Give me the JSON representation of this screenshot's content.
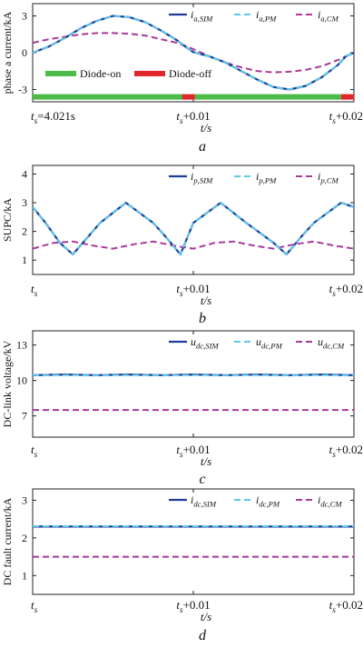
{
  "colors": {
    "sim": "#1f3c99",
    "pm": "#5ec8e6",
    "cm": "#a83a9a",
    "diode_on": "#4cbb47",
    "diode_off": "#e0262b",
    "axis": "#222222"
  },
  "chart_data": [
    {
      "id": "a",
      "type": "line",
      "panel_label": "a",
      "ylabel": "phase a current/kA",
      "xlabel": "t/s",
      "xlim": [
        0,
        0.02
      ],
      "ylim": [
        -4,
        4
      ],
      "yticks": [
        -3,
        0,
        3
      ],
      "xticks": [
        {
          "x": 0,
          "base": "t",
          "sub": "s",
          "suffix": "=4.021s"
        },
        {
          "x": 0.01,
          "base": "t",
          "sub": "s",
          "suffix": "+0.01"
        },
        {
          "x": 0.02,
          "base": "t",
          "sub": "s",
          "suffix": "+0.02"
        }
      ],
      "legend": [
        {
          "base": "i",
          "sub": "a,SIM",
          "style": "sim"
        },
        {
          "base": "i",
          "sub": "a,PM",
          "style": "pm"
        },
        {
          "base": "i",
          "sub": "a,CM",
          "style": "cm"
        }
      ],
      "series": [
        {
          "style": "sim",
          "x": [
            0,
            0.001,
            0.002,
            0.003,
            0.004,
            0.005,
            0.006,
            0.007,
            0.008,
            0.009,
            0.0095,
            0.01,
            0.011,
            0.012,
            0.013,
            0.014,
            0.015,
            0.016,
            0.017,
            0.018,
            0.019,
            0.0195,
            0.02
          ],
          "y": [
            0,
            0.5,
            1.2,
            2.0,
            2.6,
            3.0,
            2.9,
            2.5,
            1.8,
            1.0,
            0.5,
            0.05,
            -0.3,
            -0.8,
            -1.5,
            -2.2,
            -2.8,
            -3.0,
            -2.7,
            -2.0,
            -1.0,
            -0.3,
            0
          ]
        },
        {
          "style": "pm",
          "x": [
            0,
            0.001,
            0.002,
            0.003,
            0.004,
            0.005,
            0.006,
            0.007,
            0.008,
            0.009,
            0.0095,
            0.01,
            0.011,
            0.012,
            0.013,
            0.014,
            0.015,
            0.016,
            0.017,
            0.018,
            0.019,
            0.0195,
            0.02
          ],
          "y": [
            0,
            0.5,
            1.2,
            2.0,
            2.6,
            3.0,
            2.9,
            2.5,
            1.8,
            1.0,
            0.5,
            0.05,
            -0.3,
            -0.8,
            -1.5,
            -2.2,
            -2.8,
            -3.0,
            -2.7,
            -2.0,
            -1.0,
            -0.3,
            0
          ]
        },
        {
          "style": "cm",
          "x": [
            0,
            0.001,
            0.002,
            0.003,
            0.004,
            0.005,
            0.006,
            0.007,
            0.008,
            0.009,
            0.01,
            0.011,
            0.012,
            0.013,
            0.014,
            0.015,
            0.016,
            0.017,
            0.018,
            0.019,
            0.02
          ],
          "y": [
            0.8,
            1.1,
            1.3,
            1.5,
            1.6,
            1.6,
            1.55,
            1.4,
            1.1,
            0.8,
            0.3,
            -0.3,
            -0.8,
            -1.2,
            -1.5,
            -1.6,
            -1.55,
            -1.4,
            -1.1,
            -0.6,
            0
          ]
        }
      ],
      "diode_bar": {
        "y": -3.6,
        "legend": [
          {
            "label": "Diode-on",
            "style": "diode_on"
          },
          {
            "label": "Diode-off",
            "style": "diode_off"
          }
        ],
        "segments": [
          {
            "from": 0,
            "to": 0.0093,
            "style": "diode_on"
          },
          {
            "from": 0.0093,
            "to": 0.0101,
            "style": "diode_off"
          },
          {
            "from": 0.0101,
            "to": 0.0192,
            "style": "diode_on"
          },
          {
            "from": 0.0192,
            "to": 0.02,
            "style": "diode_off"
          }
        ]
      }
    },
    {
      "id": "b",
      "type": "line",
      "panel_label": "b",
      "ylabel": "SUPC/kA",
      "xlabel": "t/s",
      "xlim": [
        0,
        0.02
      ],
      "ylim": [
        0.5,
        4.3
      ],
      "yticks": [
        1,
        2,
        3,
        4
      ],
      "xticks": [
        {
          "x": 0,
          "base": "t",
          "sub": "s",
          "suffix": ""
        },
        {
          "x": 0.01,
          "base": "t",
          "sub": "s",
          "suffix": "+0.01"
        },
        {
          "x": 0.02,
          "base": "t",
          "sub": "s",
          "suffix": "+0.02"
        }
      ],
      "legend": [
        {
          "base": "i",
          "sub": "p,SIM",
          "style": "sim"
        },
        {
          "base": "i",
          "sub": "p,PM",
          "style": "pm"
        },
        {
          "base": "i",
          "sub": "p,CM",
          "style": "cm"
        }
      ],
      "series": [
        {
          "style": "sim",
          "x": [
            0,
            0.0008,
            0.0017,
            0.0025,
            0.0042,
            0.0058,
            0.0075,
            0.0083,
            0.0092,
            0.01,
            0.0117,
            0.0133,
            0.015,
            0.0158,
            0.0167,
            0.0175,
            0.0192,
            0.02
          ],
          "y": [
            2.85,
            2.3,
            1.6,
            1.2,
            2.3,
            3.0,
            2.3,
            1.8,
            1.2,
            2.3,
            3.0,
            2.3,
            1.6,
            1.2,
            1.8,
            2.3,
            3.0,
            2.85
          ]
        },
        {
          "style": "pm",
          "x": [
            0,
            0.0008,
            0.0017,
            0.0025,
            0.0042,
            0.0058,
            0.0075,
            0.0083,
            0.0092,
            0.01,
            0.0117,
            0.0133,
            0.015,
            0.0158,
            0.0167,
            0.0175,
            0.0192,
            0.02
          ],
          "y": [
            2.85,
            2.3,
            1.6,
            1.2,
            2.3,
            3.0,
            2.3,
            1.8,
            1.2,
            2.3,
            3.0,
            2.3,
            1.6,
            1.2,
            1.8,
            2.3,
            3.0,
            2.85
          ]
        },
        {
          "style": "cm",
          "x": [
            0,
            0.0013,
            0.0025,
            0.0038,
            0.005,
            0.0063,
            0.0075,
            0.0088,
            0.01,
            0.0113,
            0.0125,
            0.0138,
            0.015,
            0.0163,
            0.0175,
            0.0188,
            0.02
          ],
          "y": [
            1.4,
            1.6,
            1.65,
            1.5,
            1.4,
            1.55,
            1.65,
            1.5,
            1.4,
            1.6,
            1.65,
            1.5,
            1.4,
            1.55,
            1.65,
            1.5,
            1.4
          ]
        }
      ]
    },
    {
      "id": "c",
      "type": "line",
      "panel_label": "c",
      "ylabel": "DC-link voltage/kV",
      "xlabel": "t/s",
      "xlim": [
        0,
        0.02
      ],
      "ylim": [
        5.2,
        14.2
      ],
      "yticks": [
        7,
        10,
        13
      ],
      "xticks": [
        {
          "x": 0,
          "base": "t",
          "sub": "s",
          "suffix": ""
        },
        {
          "x": 0.01,
          "base": "t",
          "sub": "s",
          "suffix": "+0.01"
        },
        {
          "x": 0.02,
          "base": "t",
          "sub": "s",
          "suffix": "+0.02"
        }
      ],
      "legend": [
        {
          "base": "u",
          "sub": "dc,SIM",
          "style": "sim"
        },
        {
          "base": "u",
          "sub": "dc,PM",
          "style": "pm"
        },
        {
          "base": "u",
          "sub": "dc,CM",
          "style": "cm"
        }
      ],
      "series": [
        {
          "style": "sim",
          "x": [
            0,
            0.002,
            0.004,
            0.006,
            0.008,
            0.01,
            0.012,
            0.014,
            0.016,
            0.018,
            0.02
          ],
          "y": [
            10.45,
            10.5,
            10.45,
            10.5,
            10.45,
            10.5,
            10.45,
            10.5,
            10.45,
            10.5,
            10.45
          ]
        },
        {
          "style": "pm",
          "x": [
            0,
            0.02
          ],
          "y": [
            10.45,
            10.45
          ]
        },
        {
          "style": "cm",
          "x": [
            0,
            0.02
          ],
          "y": [
            7.5,
            7.5
          ]
        }
      ]
    },
    {
      "id": "d",
      "type": "line",
      "panel_label": "d",
      "ylabel": "DC fault current/kA",
      "xlabel": "t/s",
      "xlim": [
        0,
        0.02
      ],
      "ylim": [
        0.5,
        3.3
      ],
      "yticks": [
        1,
        2,
        3
      ],
      "xticks": [
        {
          "x": 0,
          "base": "t",
          "sub": "s",
          "suffix": ""
        },
        {
          "x": 0.01,
          "base": "t",
          "sub": "s",
          "suffix": "+0.01"
        },
        {
          "x": 0.02,
          "base": "t",
          "sub": "s",
          "suffix": "+0.02"
        }
      ],
      "legend": [
        {
          "base": "i",
          "sub": "dc,SIM",
          "style": "sim"
        },
        {
          "base": "i",
          "sub": "dc,PM",
          "style": "pm"
        },
        {
          "base": "i",
          "sub": "dc,CM",
          "style": "cm"
        }
      ],
      "series": [
        {
          "style": "sim",
          "x": [
            0,
            0.02
          ],
          "y": [
            2.3,
            2.3
          ]
        },
        {
          "style": "pm",
          "x": [
            0,
            0.02
          ],
          "y": [
            2.31,
            2.31
          ]
        },
        {
          "style": "cm",
          "x": [
            0,
            0.02
          ],
          "y": [
            1.5,
            1.5
          ]
        }
      ]
    }
  ]
}
